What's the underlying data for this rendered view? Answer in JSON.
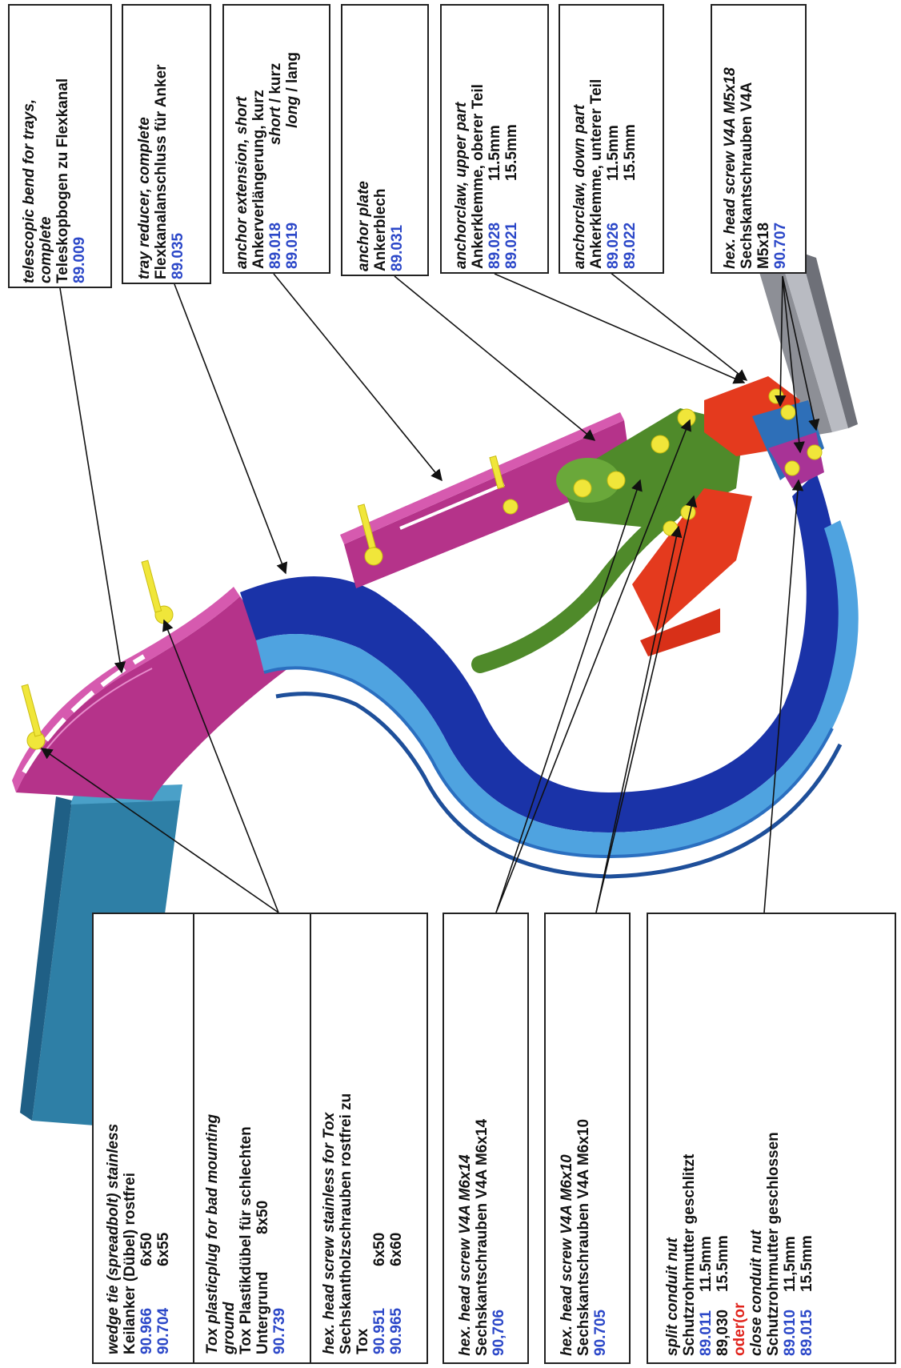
{
  "labels": {
    "telescopic": {
      "en": "telescopic bend for trays,",
      "en2": "complete",
      "de": "Teleskopbogen zu Flexkanal",
      "code": "89.009"
    },
    "reducer": {
      "en": "tray reducer, complete",
      "de": "Flexkanalanschluss für Anker",
      "code": "89.035"
    },
    "extension": {
      "en": "anchor extension, short",
      "de": "Ankerverlängerung, kurz",
      "code1": "89.018",
      "v1": "short",
      "sep": "/",
      "v1b": "kurz",
      "code2": "89.019",
      "v2": "long",
      "v2b": "lang"
    },
    "plate": {
      "en": "anchor plate",
      "de": "Ankerblech",
      "code": "89.031"
    },
    "upper": {
      "en": "anchorclaw, upper part",
      "de": "Ankerklemme, oberer Teil",
      "code1": "89.028",
      "size1": "11.5mm",
      "code2": "89.021",
      "size2": "15.5mm"
    },
    "down": {
      "en": "anchorclaw, down part",
      "de": "Ankerklemme, unterer Teil",
      "code1": "89.026",
      "size1": "11.5mm",
      "code2": "89.022",
      "size2": "15.5mm"
    },
    "m5": {
      "en": "hex. head screw V4A  M5x18",
      "de": "Sechskantschrauben V4A",
      "size": "M5x18",
      "code": "90.707"
    },
    "wedge": {
      "en": "wedge tie (spreadbolt) stainless",
      "de": "Keilanker (Dübel) rostfrei",
      "code1": "90.966",
      "size1": "6x50",
      "code2": "90.704",
      "size2": "6x55"
    },
    "tox": {
      "en": "Tox plasticplug for bad mounting",
      "en2": "ground",
      "de": "Tox Plastikdübel für schlechten",
      "de2": "Untergrund",
      "size": "8x50",
      "code": "90.739"
    },
    "hexTox": {
      "en": "hex. head screw stainless for Tox",
      "de": "Sechskantholzschrauben  rostfrei zu",
      "de2": "Tox",
      "code1": "90.951",
      "size1": "6x50",
      "code2": "90.965",
      "size2": "6x60"
    },
    "m6x14": {
      "en": "hex. head screw V4A  M6x14",
      "de": "Sechskantschrauben V4A M6x14",
      "code": "90,706"
    },
    "m6x10": {
      "en": "hex. head screw V4A  M6x10",
      "de": "Sechskantschrauben V4A M6x10",
      "code": "90.705"
    },
    "nut": {
      "en": "split conduit nut",
      "de": "Schutzrohrmutter geschlitzt",
      "code1": "89.011",
      "size1": "11.5mm",
      "code2": "89,030",
      "size2": "15.5mm",
      "or": "oder(or",
      "en2": "close conduit nut",
      "de2": "Schutzrohrmutter geschlossen",
      "code3": "89.010",
      "size3": "11,5mm",
      "code4": "89.015",
      "size4": "15.5mm"
    }
  },
  "colors": {
    "tray_teal": "#2e7fa6",
    "magenta": "#b5338a",
    "navy_conduit": "#1a33a8",
    "light_blue_conduit": "#4fa3e0",
    "green": "#4f8a2a",
    "red": "#e43a1e",
    "yellow": "#f0e63a",
    "code_blue": "#2b47c8"
  }
}
